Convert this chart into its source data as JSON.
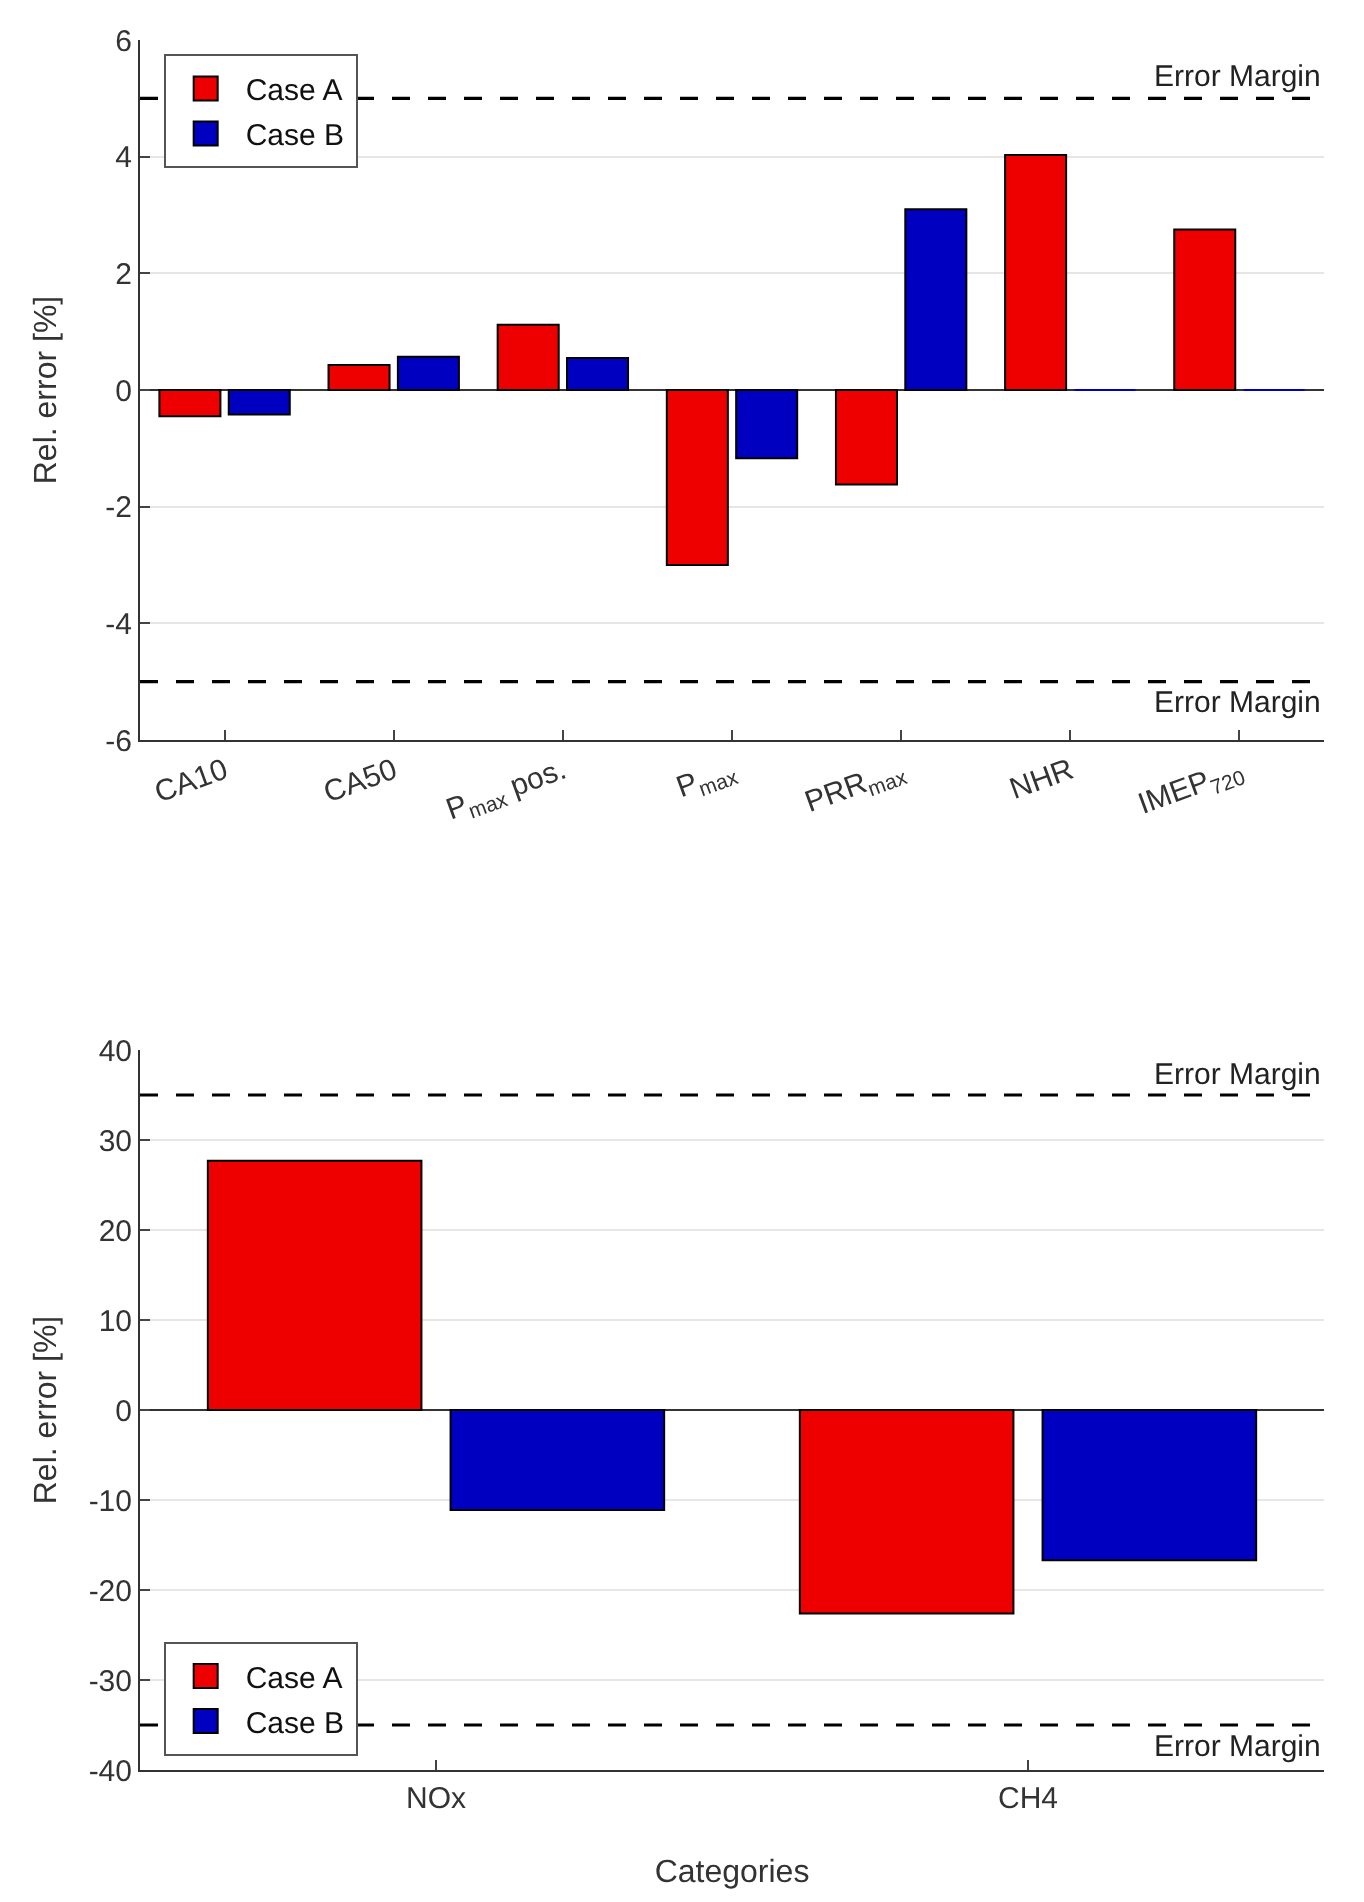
{
  "chart_data": [
    {
      "type": "bar",
      "categories": [
        "CA10",
        "CA50",
        "P$_{max}$ pos.",
        "P$_{max}$",
        "PRR$_{max}$",
        "NHR",
        "IMEP$_{720}$"
      ],
      "ylabel": "Rel. error [%]",
      "series": [
        {
          "name": "Case A",
          "color": "#ee0000",
          "values": [
            -0.45,
            0.43,
            1.12,
            -3.0,
            -1.62,
            4.03,
            2.75
          ]
        },
        {
          "name": "Case B",
          "color": "#0000c0",
          "values": [
            -0.42,
            0.57,
            0.55,
            -1.17,
            3.1,
            0.0,
            0.0
          ]
        }
      ],
      "ylim": [
        -6,
        6
      ],
      "yticks": [
        -6,
        -4,
        -2,
        0,
        2,
        4,
        6
      ],
      "grid": "y",
      "legend": "top left",
      "ref_lines": [
        {
          "axis": "y",
          "value": 5,
          "label": "Error Margin",
          "color": "#000000",
          "line_style": "dashed"
        },
        {
          "axis": "y",
          "value": -5,
          "label": "Error Margin",
          "color": "#000000",
          "line_style": "dashed"
        }
      ]
    },
    {
      "type": "bar",
      "categories": [
        "NOx",
        "CH4"
      ],
      "xlabel": "Categories",
      "ylabel": "Rel. error [%]",
      "series": [
        {
          "name": "Case A",
          "color": "#ee0000",
          "values": [
            27.7,
            -22.6
          ]
        },
        {
          "name": "Case B",
          "color": "#0000c0",
          "values": [
            -11.1,
            -16.7
          ]
        }
      ],
      "ylim": [
        -40,
        40
      ],
      "yticks": [
        -40,
        -30,
        -20,
        -10,
        0,
        10,
        20,
        30,
        40
      ],
      "grid": "y",
      "legend": "bottom left",
      "ref_lines": [
        {
          "axis": "y",
          "value": 35,
          "label": "Error Margin",
          "color": "#000000",
          "line_style": "dashed"
        },
        {
          "axis": "y",
          "value": -35,
          "label": "Error Margin",
          "color": "#000000",
          "line_style": "dashed"
        }
      ]
    }
  ]
}
